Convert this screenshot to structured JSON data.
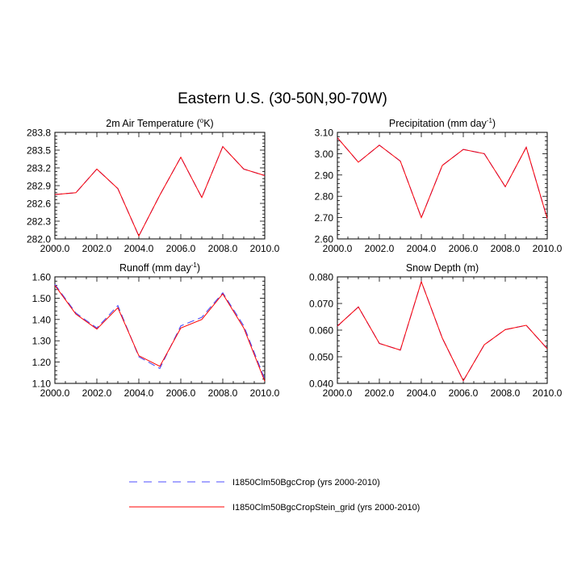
{
  "figure_title": "Eastern U.S. (30-50N,90-70W)",
  "legend": [
    {
      "label": "I1850Clm50BgcCrop (yrs 2000-2010)",
      "color": "#4d4dff",
      "dash": true
    },
    {
      "label": "I1850Clm50BgcCropStein_grid (yrs 2000-2010)",
      "color": "#ff0000",
      "dash": false
    }
  ],
  "chart_data": [
    {
      "type": "line",
      "title": "2m Air Temperature (°K)",
      "x": [
        2000,
        2001,
        2002,
        2003,
        2004,
        2005,
        2006,
        2007,
        2008,
        2009,
        2010
      ],
      "xlim": [
        2000,
        2010
      ],
      "xticks": [
        "2000.0",
        "2002.0",
        "2004.0",
        "2006.0",
        "2008.0",
        "2010.0"
      ],
      "ylim": [
        282.0,
        283.8
      ],
      "yticks": [
        "282.0",
        "282.3",
        "282.6",
        "282.9",
        "283.2",
        "283.5",
        "283.8"
      ],
      "series": [
        {
          "name": "I1850Clm50BgcCrop (yrs 2000-2010)",
          "values": [
            282.75,
            282.78,
            283.18,
            282.85,
            282.05,
            282.74,
            283.38,
            282.7,
            283.56,
            283.18,
            283.07
          ]
        },
        {
          "name": "I1850Clm50BgcCropStein_grid (yrs 2000-2010)",
          "values": [
            282.75,
            282.78,
            283.18,
            282.85,
            282.05,
            282.74,
            283.38,
            282.7,
            283.56,
            283.18,
            283.07
          ]
        }
      ]
    },
    {
      "type": "line",
      "title": "Precipitation (mm day⁻¹)",
      "x": [
        2000,
        2001,
        2002,
        2003,
        2004,
        2005,
        2006,
        2007,
        2008,
        2009,
        2010
      ],
      "xlim": [
        2000,
        2010
      ],
      "xticks": [
        "2000.0",
        "2002.0",
        "2004.0",
        "2006.0",
        "2008.0",
        "2010.0"
      ],
      "ylim": [
        2.6,
        3.1
      ],
      "yticks": [
        "2.60",
        "2.70",
        "2.80",
        "2.90",
        "3.00",
        "3.10"
      ],
      "series": [
        {
          "name": "I1850Clm50BgcCrop (yrs 2000-2010)",
          "values": [
            3.075,
            2.96,
            3.04,
            2.965,
            2.7,
            2.945,
            3.02,
            3.0,
            2.845,
            3.03,
            2.695
          ]
        },
        {
          "name": "I1850Clm50BgcCropStein_grid (yrs 2000-2010)",
          "values": [
            3.075,
            2.96,
            3.04,
            2.965,
            2.7,
            2.945,
            3.02,
            3.0,
            2.845,
            3.03,
            2.695
          ]
        }
      ]
    },
    {
      "type": "line",
      "title": "Runoff (mm day⁻¹)",
      "x": [
        2000,
        2001,
        2002,
        2003,
        2004,
        2005,
        2006,
        2007,
        2008,
        2009,
        2010
      ],
      "xlim": [
        2000,
        2010
      ],
      "xticks": [
        "2000.0",
        "2002.0",
        "2004.0",
        "2006.0",
        "2008.0",
        "2010.0"
      ],
      "ylim": [
        1.1,
        1.6
      ],
      "yticks": [
        "1.10",
        "1.20",
        "1.30",
        "1.40",
        "1.50",
        "1.60"
      ],
      "series": [
        {
          "name": "I1850Clm50BgcCrop (yrs 2000-2010)",
          "values": [
            1.565,
            1.43,
            1.36,
            1.465,
            1.225,
            1.17,
            1.37,
            1.41,
            1.525,
            1.37,
            1.12
          ]
        },
        {
          "name": "I1850Clm50BgcCropStein_grid (yrs 2000-2010)",
          "values": [
            1.56,
            1.425,
            1.355,
            1.455,
            1.23,
            1.18,
            1.36,
            1.4,
            1.52,
            1.36,
            1.11
          ]
        }
      ]
    },
    {
      "type": "line",
      "title": "Snow Depth (m)",
      "x": [
        2000,
        2001,
        2002,
        2003,
        2004,
        2005,
        2006,
        2007,
        2008,
        2009,
        2010
      ],
      "xlim": [
        2000,
        2010
      ],
      "xticks": [
        "2000.0",
        "2002.0",
        "2004.0",
        "2006.0",
        "2008.0",
        "2010.0"
      ],
      "ylim": [
        0.04,
        0.08
      ],
      "yticks": [
        "0.040",
        "0.050",
        "0.060",
        "0.070",
        "0.080"
      ],
      "series": [
        {
          "name": "I1850Clm50BgcCrop (yrs 2000-2010)",
          "values": [
            0.0615,
            0.0687,
            0.055,
            0.0525,
            0.0782,
            0.057,
            0.041,
            0.0545,
            0.0602,
            0.0618,
            0.053
          ]
        },
        {
          "name": "I1850Clm50BgcCropStein_grid (yrs 2000-2010)",
          "values": [
            0.0615,
            0.0687,
            0.055,
            0.0525,
            0.0782,
            0.057,
            0.041,
            0.0545,
            0.0602,
            0.0618,
            0.053
          ]
        }
      ]
    }
  ]
}
